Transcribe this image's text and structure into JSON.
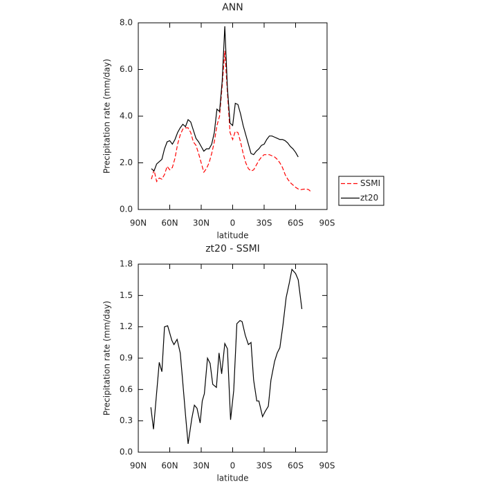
{
  "chart_data": [
    {
      "type": "line",
      "title": "ANN",
      "xlabel": "latitude",
      "ylabel": "Precipitation rate (mm/day)",
      "x": [
        77.5,
        75,
        72.5,
        70,
        67.5,
        65,
        62.5,
        60,
        57.5,
        55,
        52.5,
        50,
        47.5,
        45,
        42.5,
        40,
        37.5,
        35,
        32.5,
        30,
        27.5,
        25,
        22.5,
        20,
        17.5,
        15,
        12.5,
        10,
        7.5,
        5,
        2.5,
        0,
        -2.5,
        -5,
        -7.5,
        -10,
        -12.5,
        -15,
        -17.5,
        -20,
        -22.5,
        -25,
        -27.5,
        -30,
        -32.5,
        -35,
        -37.5,
        -40,
        -42.5,
        -45,
        -47.5,
        -50,
        -52.5,
        -55,
        -57.5,
        -60,
        -62.5,
        -65,
        -67.5,
        -70,
        -72.5,
        -75
      ],
      "series": [
        {
          "name": "SSMI",
          "color": "#ff0000",
          "linestyle": "dashed",
          "values": [
            1.3,
            1.7,
            1.2,
            1.35,
            1.3,
            1.5,
            1.85,
            1.7,
            1.8,
            2.2,
            2.8,
            3.2,
            3.45,
            3.5,
            3.5,
            3.3,
            2.9,
            2.75,
            2.4,
            2.0,
            1.6,
            1.75,
            2.0,
            2.4,
            2.9,
            3.6,
            4.0,
            5.3,
            6.8,
            5.0,
            3.3,
            3.0,
            3.35,
            3.3,
            2.9,
            2.4,
            2.0,
            1.75,
            1.65,
            1.7,
            1.9,
            2.1,
            2.25,
            2.35,
            2.35,
            2.35,
            2.3,
            2.25,
            2.15,
            2.0,
            1.8,
            1.5,
            1.3,
            1.15,
            1.05,
            0.95,
            0.88,
            0.85,
            0.87,
            0.88,
            0.85,
            0.75
          ]
        },
        {
          "name": "zt20",
          "color": "#000000",
          "linestyle": "solid",
          "values": [
            1.75,
            1.65,
            1.95,
            2.05,
            2.15,
            2.6,
            2.9,
            2.95,
            2.8,
            3.0,
            3.3,
            3.5,
            3.65,
            3.55,
            3.85,
            3.75,
            3.4,
            3.05,
            2.9,
            2.7,
            2.5,
            2.6,
            2.6,
            2.8,
            3.3,
            4.3,
            4.2,
            5.5,
            7.85,
            5.2,
            3.7,
            3.6,
            4.55,
            4.5,
            4.1,
            3.6,
            3.2,
            2.8,
            2.4,
            2.35,
            2.5,
            2.6,
            2.75,
            2.8,
            3.0,
            3.15,
            3.15,
            3.1,
            3.05,
            3.0,
            3.0,
            2.95,
            2.85,
            2.7,
            2.6,
            2.45,
            2.25,
            null,
            null,
            null,
            null,
            null
          ]
        }
      ],
      "xlim": [
        90,
        -90
      ],
      "xticks": [
        {
          "value": 90,
          "label": "90N"
        },
        {
          "value": 60,
          "label": "60N"
        },
        {
          "value": 30,
          "label": "30N"
        },
        0,
        {
          "value": -30,
          "label": "30S"
        },
        {
          "value": -60,
          "label": "60S"
        },
        {
          "value": -90,
          "label": "90S"
        }
      ],
      "ylim": [
        0,
        8
      ],
      "yticks": [
        {
          "value": 0,
          "label": "0.0"
        },
        {
          "value": 2,
          "label": "2.0"
        },
        {
          "value": 4,
          "label": "4.0"
        },
        {
          "value": 6,
          "label": "6.0"
        },
        {
          "value": 8,
          "label": "8.0"
        }
      ],
      "legend": "right"
    },
    {
      "type": "line",
      "title": "zt20 - SSMI",
      "xlabel": "latitude",
      "ylabel": "Precipitation rate (mm/day)",
      "x": [
        78,
        75.5,
        70,
        67.5,
        65,
        62,
        58,
        56,
        53,
        50,
        48,
        45,
        42.5,
        39,
        36.5,
        34,
        31,
        29,
        27,
        24,
        21.5,
        19,
        15.5,
        13,
        10.5,
        7.5,
        5,
        2,
        -1,
        -4,
        -7,
        -9,
        -12,
        -15,
        -17.5,
        -20,
        -23,
        -25,
        -28.5,
        -31,
        -34,
        -36.5,
        -40,
        -42.5,
        -45,
        -48,
        -51,
        -54,
        -56.5,
        -60,
        -62.5,
        -66
      ],
      "series": [
        {
          "name": "zt20 - SSMI",
          "color": "#000000",
          "linestyle": "solid",
          "values": [
            0.43,
            0.22,
            0.86,
            0.77,
            1.2,
            1.21,
            1.07,
            1.03,
            1.08,
            0.95,
            0.72,
            0.36,
            0.08,
            0.32,
            0.45,
            0.42,
            0.28,
            0.49,
            0.56,
            0.9,
            0.85,
            0.65,
            0.62,
            0.95,
            0.75,
            1.04,
            0.99,
            0.31,
            0.59,
            1.23,
            1.26,
            1.25,
            1.12,
            1.03,
            1.05,
            0.69,
            0.49,
            0.49,
            0.34,
            0.39,
            0.44,
            0.69,
            0.87,
            0.95,
            1.0,
            1.22,
            1.48,
            1.62,
            1.75,
            1.71,
            1.65,
            1.37
          ]
        }
      ],
      "xlim": [
        90,
        -90
      ],
      "xticks": [
        {
          "value": 90,
          "label": "90N"
        },
        {
          "value": 60,
          "label": "60N"
        },
        {
          "value": 30,
          "label": "30N"
        },
        0,
        {
          "value": -30,
          "label": "30S"
        },
        {
          "value": -60,
          "label": "60S"
        },
        {
          "value": -90,
          "label": "90S"
        }
      ],
      "ylim": [
        0,
        1.8
      ],
      "yticks": [
        {
          "value": 0,
          "label": "0.0"
        },
        {
          "value": 0.3,
          "label": "0.3"
        },
        {
          "value": 0.6,
          "label": "0.6"
        },
        {
          "value": 0.9,
          "label": "0.9"
        },
        {
          "value": 1.2,
          "label": "1.2"
        },
        {
          "value": 1.5,
          "label": "1.5"
        },
        {
          "value": 1.8,
          "label": "1.8"
        }
      ]
    }
  ]
}
